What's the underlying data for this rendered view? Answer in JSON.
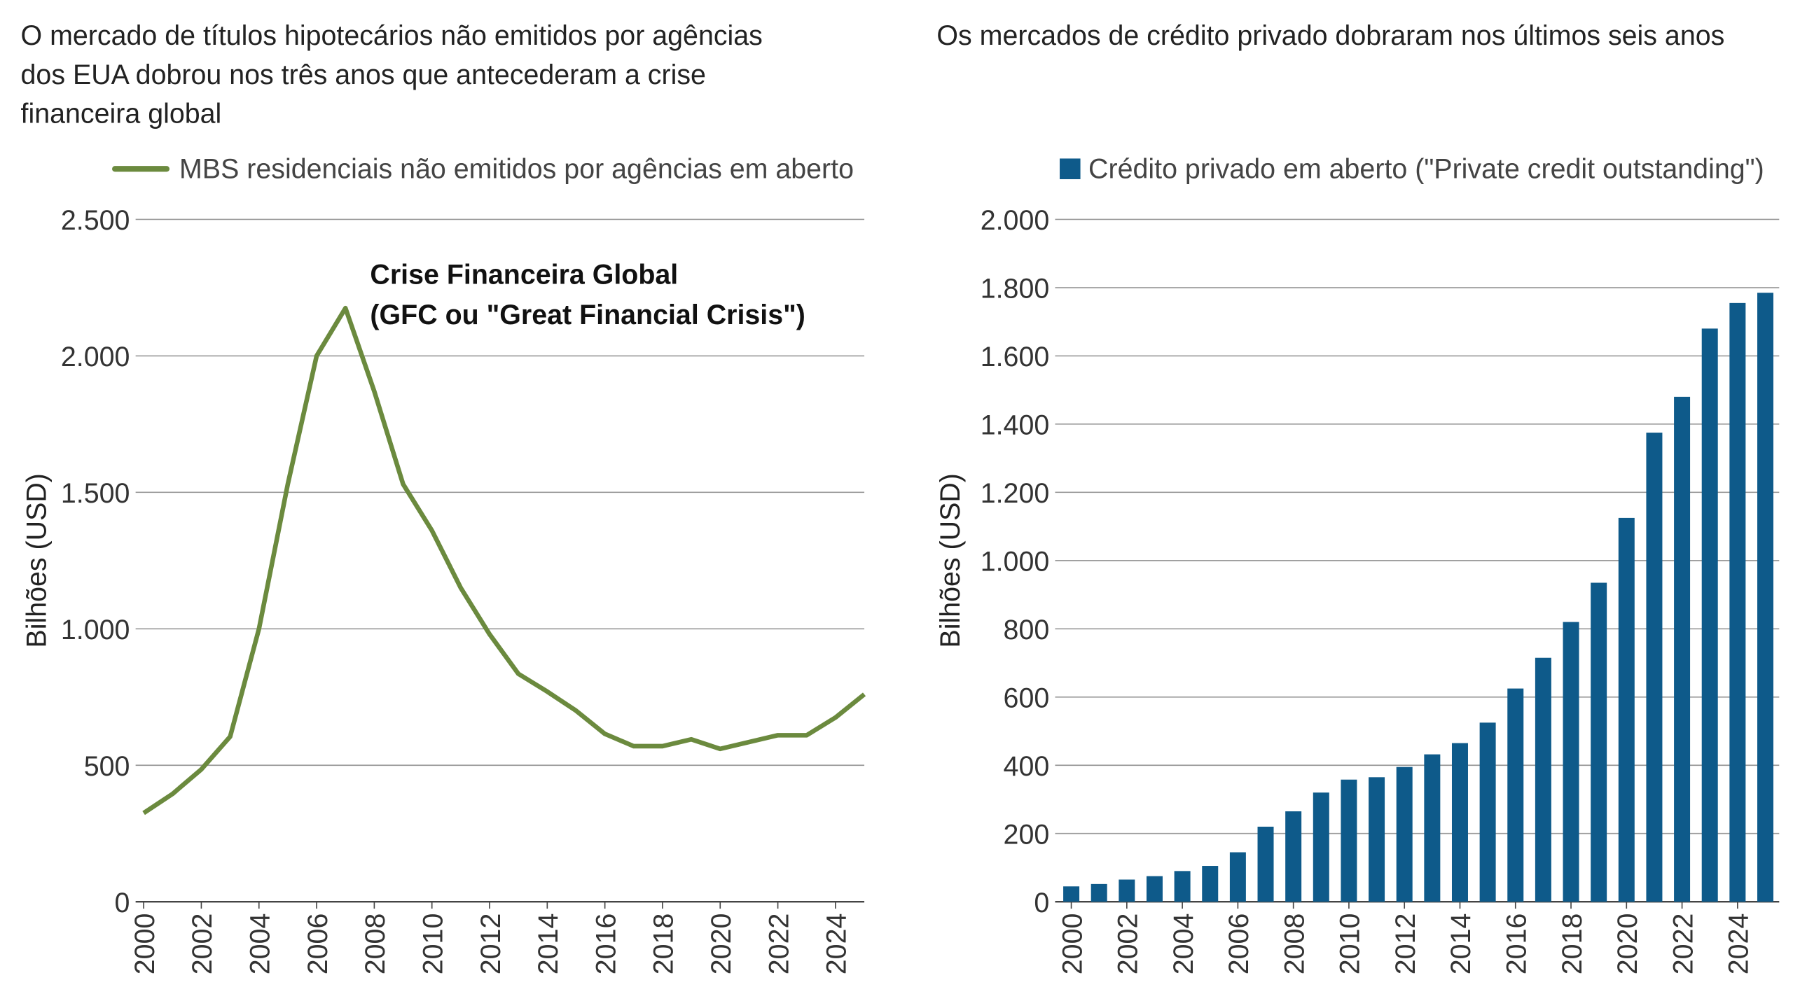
{
  "chart_data": [
    {
      "type": "line",
      "title": [
        "O mercado de títulos hipotecários não emitidos por agências",
        "dos EUA dobrou nos três anos que antecederam a crise",
        "financeira global"
      ],
      "y_label": "Bilhões (USD)",
      "annotation": [
        "Crise Financeira Global",
        "(GFC ou \"Great Financial Crisis\")"
      ],
      "x": [
        2000,
        2001,
        2002,
        2003,
        2004,
        2005,
        2006,
        2007,
        2008,
        2009,
        2010,
        2011,
        2012,
        2013,
        2014,
        2015,
        2016,
        2017,
        2018,
        2019,
        2020,
        2021,
        2022,
        2023,
        2024,
        2025
      ],
      "series": [
        {
          "name": "MBS residenciais não emitidos por agências em aberto",
          "color": "#6b8a3e",
          "values": [
            325,
            395,
            485,
            605,
            1000,
            1530,
            2000,
            2175,
            1870,
            1530,
            1360,
            1150,
            980,
            835,
            770,
            700,
            615,
            570,
            570,
            595,
            560,
            585,
            610,
            610,
            675,
            760
          ]
        }
      ],
      "xlim": [
        2000,
        2025
      ],
      "xticks": [
        2000,
        2002,
        2004,
        2006,
        2008,
        2010,
        2012,
        2014,
        2016,
        2018,
        2020,
        2022,
        2024
      ],
      "ylim": [
        0,
        2500
      ],
      "yticks": [
        0,
        500,
        {
          "value": 1000,
          "label": "1.000"
        },
        {
          "value": 1500,
          "label": "1.500"
        },
        {
          "value": 2000,
          "label": "2.000"
        },
        {
          "value": 2500,
          "label": "2.500"
        }
      ],
      "grid": true
    },
    {
      "type": "bar",
      "title": [
        "Os mercados de crédito privado dobraram nos últimos seis anos"
      ],
      "y_label": "Bilhões (USD)",
      "x": [
        2000,
        2001,
        2002,
        2003,
        2004,
        2005,
        2006,
        2007,
        2008,
        2009,
        2010,
        2011,
        2012,
        2013,
        2014,
        2015,
        2016,
        2017,
        2018,
        2019,
        2020,
        2021,
        2022,
        2023,
        2024,
        2025
      ],
      "series": [
        {
          "name": "Crédito privado em aberto (\"Private credit outstanding\")",
          "color": "#0e5a8a",
          "values": [
            45,
            52,
            65,
            75,
            90,
            105,
            145,
            220,
            265,
            320,
            358,
            365,
            395,
            432,
            465,
            525,
            625,
            715,
            820,
            935,
            1125,
            1375,
            1480,
            1680,
            1755,
            1785
          ]
        }
      ],
      "xlim": [
        2000,
        2025
      ],
      "xticks": [
        2000,
        2002,
        2004,
        2006,
        2008,
        2010,
        2012,
        2014,
        2016,
        2018,
        2020,
        2022,
        2024
      ],
      "ylim": [
        0,
        2000
      ],
      "yticks": [
        0,
        200,
        400,
        600,
        800,
        {
          "value": 1000,
          "label": "1.000"
        },
        {
          "value": 1200,
          "label": "1.200"
        },
        {
          "value": 1400,
          "label": "1.400"
        },
        {
          "value": 1600,
          "label": "1.600"
        },
        {
          "value": 1800,
          "label": "1.800"
        },
        {
          "value": 2000,
          "label": "2.000"
        }
      ],
      "grid": true
    }
  ]
}
